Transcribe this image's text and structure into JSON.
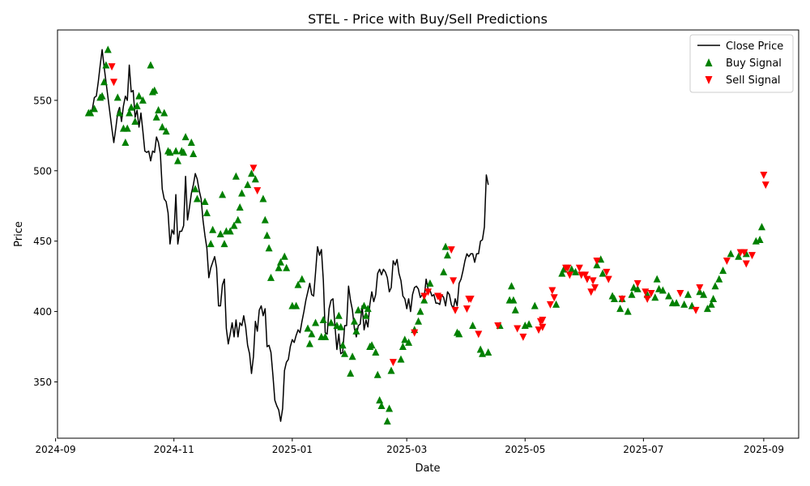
{
  "chart_data": {
    "type": "line",
    "title": "STEL - Price with Buy/Sell Predictions",
    "xlabel": "Date",
    "ylabel": "Price",
    "x_start": "2024-09-18",
    "ylim": [
      310,
      600
    ],
    "xlim": [
      "2024-09-02",
      "2025-09-19"
    ],
    "y_ticks": [
      350,
      400,
      450,
      500,
      550
    ],
    "x_ticks": [
      "2024-09",
      "2024-11",
      "2025-01",
      "2025-03",
      "2025-05",
      "2025-07",
      "2025-09"
    ],
    "x_tick_dates": [
      "2024-09-01",
      "2024-11-01",
      "2025-01-01",
      "2025-03-01",
      "2025-05-01",
      "2025-07-01",
      "2025-09-01"
    ],
    "grid": false,
    "legend_position": "top-right",
    "colors": {
      "line": "#000000",
      "buy": "#008000",
      "sell": "#ff0000"
    },
    "series": [
      {
        "name": "Close Price",
        "kind": "line"
      },
      {
        "name": "Buy Signal",
        "kind": "marker-up"
      },
      {
        "name": "Sell Signal",
        "kind": "marker-down"
      }
    ],
    "close_prices": [
      541,
      541,
      544,
      552,
      553,
      563,
      575,
      586,
      574,
      563,
      552,
      541,
      530,
      520,
      530,
      541,
      545,
      535,
      546,
      553,
      550,
      575,
      556,
      557,
      538,
      543,
      531,
      541,
      528,
      514,
      513,
      514,
      507,
      514,
      513,
      524,
      520,
      512,
      487,
      480,
      478,
      470,
      448,
      458,
      455,
      483,
      448,
      457,
      457,
      461,
      496,
      465,
      474,
      484,
      490,
      498,
      494,
      486,
      480,
      465,
      454,
      445,
      424,
      431,
      435,
      439,
      431,
      404,
      404,
      419,
      423,
      388,
      377,
      384,
      392,
      382,
      394,
      382,
      392,
      390,
      397,
      389,
      376,
      370,
      356,
      368,
      393,
      386,
      401,
      404,
      397,
      402,
      375,
      376,
      371,
      355,
      337,
      333,
      330,
      322,
      331,
      358,
      364,
      366,
      375,
      380,
      378,
      383,
      387,
      385,
      393,
      400,
      408,
      414,
      420,
      412,
      411,
      428,
      446,
      440,
      444,
      422,
      385,
      384,
      402,
      408,
      409,
      390,
      373,
      384,
      370,
      371,
      390,
      390,
      418,
      408,
      401,
      388,
      382,
      390,
      391,
      404,
      387,
      394,
      389,
      405,
      414,
      407,
      412,
      427,
      430,
      426,
      430,
      428,
      424,
      414,
      417,
      436,
      433,
      437,
      427,
      422,
      411,
      409,
      402,
      409,
      400,
      412,
      417,
      418,
      416,
      410,
      412,
      410,
      423,
      416,
      415,
      411,
      412,
      406,
      406,
      405,
      412,
      410,
      404,
      414,
      412,
      405,
      402,
      409,
      404,
      420,
      423,
      429,
      436,
      441,
      439,
      441,
      441,
      435,
      441,
      441,
      450,
      451,
      460,
      497,
      490
    ],
    "buy_signals": [
      [
        "2024-09-18",
        541
      ],
      [
        "2024-09-19",
        541
      ],
      [
        "2024-09-21",
        544
      ],
      [
        "2024-09-24",
        552
      ],
      [
        "2024-09-25",
        553
      ],
      [
        "2024-09-26",
        563
      ],
      [
        "2024-09-27",
        575
      ],
      [
        "2024-09-28",
        586
      ],
      [
        "2024-10-03",
        552
      ],
      [
        "2024-10-04",
        541
      ],
      [
        "2024-10-06",
        530
      ],
      [
        "2024-10-07",
        520
      ],
      [
        "2024-10-08",
        530
      ],
      [
        "2024-10-09",
        541
      ],
      [
        "2024-10-10",
        545
      ],
      [
        "2024-10-12",
        535
      ],
      [
        "2024-10-13",
        546
      ],
      [
        "2024-10-14",
        553
      ],
      [
        "2024-10-16",
        550
      ],
      [
        "2024-10-20",
        575
      ],
      [
        "2024-10-21",
        556
      ],
      [
        "2024-10-22",
        557
      ],
      [
        "2024-10-23",
        538
      ],
      [
        "2024-10-24",
        543
      ],
      [
        "2024-10-26",
        531
      ],
      [
        "2024-10-27",
        541
      ],
      [
        "2024-10-28",
        528
      ],
      [
        "2024-10-29",
        514
      ],
      [
        "2024-10-30",
        513
      ],
      [
        "2024-11-02",
        514
      ],
      [
        "2024-11-03",
        507
      ],
      [
        "2024-11-05",
        514
      ],
      [
        "2024-11-06",
        513
      ],
      [
        "2024-11-07",
        524
      ],
      [
        "2024-11-10",
        520
      ],
      [
        "2024-11-11",
        512
      ],
      [
        "2024-11-12",
        487
      ],
      [
        "2024-11-13",
        480
      ],
      [
        "2024-11-17",
        478
      ],
      [
        "2024-11-18",
        470
      ],
      [
        "2024-11-20",
        448
      ],
      [
        "2024-11-21",
        458
      ],
      [
        "2024-11-25",
        455
      ],
      [
        "2024-11-26",
        483
      ],
      [
        "2024-11-27",
        448
      ],
      [
        "2024-11-28",
        457
      ],
      [
        "2024-11-30",
        457
      ],
      [
        "2024-12-02",
        461
      ],
      [
        "2024-12-03",
        496
      ],
      [
        "2024-12-04",
        465
      ],
      [
        "2024-12-05",
        474
      ],
      [
        "2024-12-06",
        484
      ],
      [
        "2024-12-09",
        490
      ],
      [
        "2024-12-11",
        498
      ],
      [
        "2024-12-13",
        494
      ],
      [
        "2024-12-17",
        480
      ],
      [
        "2024-12-18",
        465
      ],
      [
        "2024-12-19",
        454
      ],
      [
        "2024-12-20",
        445
      ],
      [
        "2024-12-21",
        424
      ],
      [
        "2024-12-25",
        431
      ],
      [
        "2024-12-26",
        435
      ],
      [
        "2024-12-28",
        439
      ],
      [
        "2024-12-29",
        431
      ],
      [
        "2025-01-01",
        404
      ],
      [
        "2025-01-03",
        404
      ],
      [
        "2025-01-04",
        419
      ],
      [
        "2025-01-06",
        423
      ],
      [
        "2025-01-09",
        388
      ],
      [
        "2025-01-10",
        377
      ],
      [
        "2025-01-11",
        384
      ],
      [
        "2025-01-13",
        392
      ],
      [
        "2025-01-16",
        382
      ],
      [
        "2025-01-17",
        394
      ],
      [
        "2025-01-18",
        382
      ],
      [
        "2025-01-21",
        392
      ],
      [
        "2025-01-24",
        390
      ],
      [
        "2025-01-25",
        397
      ],
      [
        "2025-01-26",
        389
      ],
      [
        "2025-01-27",
        376
      ],
      [
        "2025-01-28",
        370
      ],
      [
        "2025-01-31",
        356
      ],
      [
        "2025-02-01",
        368
      ],
      [
        "2025-02-02",
        393
      ],
      [
        "2025-02-03",
        386
      ],
      [
        "2025-02-04",
        401
      ],
      [
        "2025-02-07",
        404
      ],
      [
        "2025-02-08",
        397
      ],
      [
        "2025-02-09",
        402
      ],
      [
        "2025-02-10",
        375
      ],
      [
        "2025-02-11",
        376
      ],
      [
        "2025-02-13",
        371
      ],
      [
        "2025-02-14",
        355
      ],
      [
        "2025-02-15",
        337
      ],
      [
        "2025-02-16",
        333
      ],
      [
        "2025-02-19",
        322
      ],
      [
        "2025-02-20",
        331
      ],
      [
        "2025-02-21",
        358
      ],
      [
        "2025-02-26",
        366
      ],
      [
        "2025-02-27",
        375
      ],
      [
        "2025-02-28",
        380
      ],
      [
        "2025-03-02",
        378
      ],
      [
        "2025-03-05",
        387
      ],
      [
        "2025-03-07",
        393
      ],
      [
        "2025-03-08",
        400
      ],
      [
        "2025-03-10",
        408
      ],
      [
        "2025-03-13",
        420
      ],
      [
        "2025-03-20",
        428
      ],
      [
        "2025-03-21",
        446
      ],
      [
        "2025-03-22",
        440
      ],
      [
        "2025-03-27",
        385
      ],
      [
        "2025-03-28",
        384
      ],
      [
        "2025-04-04",
        390
      ],
      [
        "2025-04-08",
        373
      ],
      [
        "2025-04-09",
        370
      ],
      [
        "2025-04-12",
        371
      ],
      [
        "2025-04-18",
        390
      ],
      [
        "2025-04-23",
        408
      ],
      [
        "2025-04-24",
        418
      ],
      [
        "2025-04-25",
        408
      ],
      [
        "2025-04-26",
        401
      ],
      [
        "2025-05-01",
        390
      ],
      [
        "2025-05-03",
        391
      ],
      [
        "2025-05-06",
        404
      ],
      [
        "2025-05-17",
        405
      ],
      [
        "2025-05-20",
        427
      ],
      [
        "2025-05-21",
        430
      ],
      [
        "2025-05-25",
        430
      ],
      [
        "2025-05-27",
        428
      ],
      [
        "2025-06-07",
        433
      ],
      [
        "2025-06-09",
        437
      ],
      [
        "2025-06-10",
        427
      ],
      [
        "2025-06-15",
        411
      ],
      [
        "2025-06-16",
        409
      ],
      [
        "2025-06-19",
        402
      ],
      [
        "2025-06-20",
        409
      ],
      [
        "2025-06-23",
        400
      ],
      [
        "2025-06-25",
        412
      ],
      [
        "2025-06-26",
        417
      ],
      [
        "2025-06-28",
        416
      ],
      [
        "2025-07-03",
        412
      ],
      [
        "2025-07-07",
        410
      ],
      [
        "2025-07-08",
        423
      ],
      [
        "2025-07-09",
        416
      ],
      [
        "2025-07-11",
        415
      ],
      [
        "2025-07-14",
        411
      ],
      [
        "2025-07-16",
        406
      ],
      [
        "2025-07-18",
        406
      ],
      [
        "2025-07-22",
        405
      ],
      [
        "2025-07-24",
        412
      ],
      [
        "2025-07-26",
        404
      ],
      [
        "2025-07-30",
        414
      ],
      [
        "2025-08-01",
        412
      ],
      [
        "2025-08-03",
        402
      ],
      [
        "2025-08-05",
        405
      ],
      [
        "2025-08-06",
        409
      ],
      [
        "2025-08-07",
        418
      ],
      [
        "2025-08-09",
        423
      ],
      [
        "2025-08-11",
        429
      ],
      [
        "2025-08-15",
        441
      ],
      [
        "2025-08-19",
        439
      ],
      [
        "2025-08-23",
        441
      ],
      [
        "2025-08-28",
        450
      ],
      [
        "2025-08-30",
        451
      ],
      [
        "2025-08-31",
        460
      ]
    ],
    "sell_signals": [
      [
        "2024-09-30",
        574
      ],
      [
        "2024-10-01",
        563
      ],
      [
        "2024-12-12",
        502
      ],
      [
        "2024-12-14",
        486
      ],
      [
        "2025-02-22",
        364
      ],
      [
        "2025-03-05",
        385
      ],
      [
        "2025-03-10",
        411
      ],
      [
        "2025-03-12",
        414
      ],
      [
        "2025-03-17",
        411
      ],
      [
        "2025-03-18",
        410
      ],
      [
        "2025-03-24",
        444
      ],
      [
        "2025-03-25",
        422
      ],
      [
        "2025-03-26",
        401
      ],
      [
        "2025-04-01",
        402
      ],
      [
        "2025-04-02",
        409
      ],
      [
        "2025-04-03",
        409
      ],
      [
        "2025-04-07",
        384
      ],
      [
        "2025-04-17",
        390
      ],
      [
        "2025-04-27",
        388
      ],
      [
        "2025-04-30",
        382
      ],
      [
        "2025-05-08",
        387
      ],
      [
        "2025-05-09",
        393
      ],
      [
        "2025-05-10",
        394
      ],
      [
        "2025-05-10",
        389
      ],
      [
        "2025-05-14",
        405
      ],
      [
        "2025-05-15",
        415
      ],
      [
        "2025-05-16",
        410
      ],
      [
        "2025-05-22",
        431
      ],
      [
        "2025-05-23",
        431
      ],
      [
        "2025-05-24",
        426
      ],
      [
        "2025-05-29",
        431
      ],
      [
        "2025-05-30",
        426
      ],
      [
        "2025-06-01",
        426
      ],
      [
        "2025-06-02",
        423
      ],
      [
        "2025-06-04",
        414
      ],
      [
        "2025-06-05",
        422
      ],
      [
        "2025-06-06",
        417
      ],
      [
        "2025-06-07",
        436
      ],
      [
        "2025-06-12",
        428
      ],
      [
        "2025-06-13",
        423
      ],
      [
        "2025-06-20",
        409
      ],
      [
        "2025-06-28",
        420
      ],
      [
        "2025-07-02",
        414
      ],
      [
        "2025-07-03",
        409
      ],
      [
        "2025-07-05",
        413
      ],
      [
        "2025-07-20",
        413
      ],
      [
        "2025-07-28",
        401
      ],
      [
        "2025-07-30",
        417
      ],
      [
        "2025-08-13",
        436
      ],
      [
        "2025-08-20",
        442
      ],
      [
        "2025-08-22",
        442
      ],
      [
        "2025-08-23",
        434
      ],
      [
        "2025-08-26",
        440
      ],
      [
        "2025-09-01",
        497
      ],
      [
        "2025-09-02",
        490
      ]
    ]
  }
}
